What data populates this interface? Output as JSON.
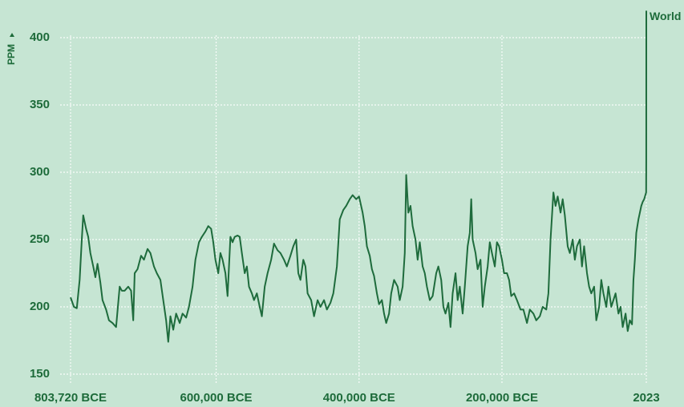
{
  "chart_data": {
    "type": "line",
    "ylabel": "PPM",
    "xlim": [
      -803720,
      2023
    ],
    "ylim": [
      150,
      420
    ],
    "yticks": [
      150,
      200,
      250,
      300,
      350,
      400
    ],
    "xticks": [
      {
        "value": -803720,
        "label": "803,720 BCE"
      },
      {
        "value": -600000,
        "label": "600,000 BCE"
      },
      {
        "value": -400000,
        "label": "400,000 BCE"
      },
      {
        "value": -200000,
        "label": "200,000 BCE"
      },
      2023
    ],
    "grid": true,
    "series": [
      {
        "name": "World",
        "color": "#1e6b3c",
        "x": [
          -803720,
          -799000,
          -795000,
          -791000,
          -788000,
          -786000,
          -782000,
          -779000,
          -776000,
          -772000,
          -769000,
          -766000,
          -762000,
          -759000,
          -754000,
          -750000,
          -745000,
          -740000,
          -735000,
          -732000,
          -728000,
          -723000,
          -719000,
          -716000,
          -714000,
          -710000,
          -705000,
          -701000,
          -696000,
          -692000,
          -687000,
          -683000,
          -678000,
          -674000,
          -670000,
          -667000,
          -664000,
          -660000,
          -656000,
          -651000,
          -647000,
          -642000,
          -638000,
          -633000,
          -629000,
          -624000,
          -620000,
          -615000,
          -611000,
          -607000,
          -604000,
          -601000,
          -597000,
          -594000,
          -591000,
          -587000,
          -584000,
          -580000,
          -577000,
          -574000,
          -570000,
          -567000,
          -564000,
          -560000,
          -557000,
          -554000,
          -550000,
          -547000,
          -543000,
          -539000,
          -536000,
          -532000,
          -528000,
          -523000,
          -519000,
          -514000,
          -510000,
          -505000,
          -501000,
          -496000,
          -492000,
          -488000,
          -485000,
          -482000,
          -478000,
          -475000,
          -472000,
          -467000,
          -463000,
          -458000,
          -454000,
          -449000,
          -445000,
          -440000,
          -436000,
          -431000,
          -427000,
          -422000,
          -418000,
          -413000,
          -409000,
          -404000,
          -400000,
          -395000,
          -392000,
          -389000,
          -385000,
          -382000,
          -379000,
          -375000,
          -372000,
          -368000,
          -365000,
          -362000,
          -358000,
          -355000,
          -351000,
          -346000,
          -343000,
          -339000,
          -336000,
          -334000,
          -331000,
          -328000,
          -325000,
          -321000,
          -318000,
          -315000,
          -311000,
          -308000,
          -305000,
          -301000,
          -297000,
          -292000,
          -289000,
          -285000,
          -282000,
          -279000,
          -275000,
          -272000,
          -269000,
          -265000,
          -262000,
          -259000,
          -255000,
          -252000,
          -248000,
          -245000,
          -243000,
          -241000,
          -237000,
          -234000,
          -230000,
          -227000,
          -224000,
          -220000,
          -217000,
          -214000,
          -210000,
          -207000,
          -204000,
          -200000,
          -197000,
          -193000,
          -190000,
          -187000,
          -183000,
          -179000,
          -174000,
          -170000,
          -165000,
          -161000,
          -156000,
          -152000,
          -147000,
          -143000,
          -138000,
          -135000,
          -132000,
          -128000,
          -125000,
          -122000,
          -118000,
          -115000,
          -112000,
          -108000,
          -105000,
          -101000,
          -98000,
          -95000,
          -91000,
          -88000,
          -85000,
          -81000,
          -78000,
          -75000,
          -71000,
          -68000,
          -64000,
          -61000,
          -58000,
          -54000,
          -51000,
          -47000,
          -44000,
          -41000,
          -37000,
          -34000,
          -31000,
          -27000,
          -24000,
          -21000,
          -18000,
          -16000,
          -14000,
          -12000,
          -9000,
          -7000,
          -5000,
          -3000,
          -1000,
          1800,
          1950,
          2023
        ],
        "values": [
          207,
          200,
          199,
          220,
          250,
          268,
          258,
          252,
          240,
          230,
          222,
          232,
          218,
          205,
          198,
          190,
          188,
          185,
          215,
          212,
          212,
          215,
          212,
          190,
          225,
          228,
          238,
          235,
          243,
          240,
          230,
          225,
          220,
          205,
          190,
          174,
          193,
          183,
          195,
          188,
          195,
          192,
          200,
          215,
          235,
          248,
          252,
          256,
          260,
          258,
          248,
          235,
          225,
          240,
          235,
          225,
          208,
          252,
          248,
          252,
          253,
          252,
          240,
          225,
          230,
          215,
          210,
          205,
          210,
          200,
          193,
          215,
          225,
          235,
          247,
          242,
          240,
          235,
          230,
          238,
          245,
          250,
          225,
          220,
          235,
          230,
          210,
          205,
          193,
          205,
          200,
          205,
          198,
          203,
          210,
          230,
          265,
          272,
          275,
          280,
          283,
          280,
          282,
          270,
          260,
          245,
          238,
          228,
          223,
          210,
          202,
          205,
          195,
          188,
          195,
          210,
          220,
          215,
          205,
          215,
          240,
          298,
          270,
          275,
          260,
          250,
          235,
          248,
          230,
          225,
          215,
          205,
          208,
          225,
          230,
          220,
          200,
          195,
          203,
          185,
          210,
          225,
          205,
          215,
          195,
          215,
          245,
          255,
          280,
          250,
          240,
          228,
          235,
          200,
          215,
          230,
          248,
          240,
          230,
          248,
          245,
          235,
          225,
          225,
          220,
          208,
          210,
          205,
          198,
          198,
          188,
          198,
          195,
          190,
          193,
          200,
          198,
          210,
          250,
          285,
          275,
          282,
          270,
          280,
          268,
          245,
          240,
          250,
          235,
          245,
          250,
          230,
          245,
          225,
          215,
          210,
          215,
          190,
          200,
          220,
          210,
          200,
          215,
          200,
          205,
          210,
          195,
          200,
          185,
          195,
          182,
          190,
          187,
          220,
          235,
          255,
          265,
          270,
          275,
          278,
          280,
          285,
          310,
          420
        ]
      }
    ]
  }
}
